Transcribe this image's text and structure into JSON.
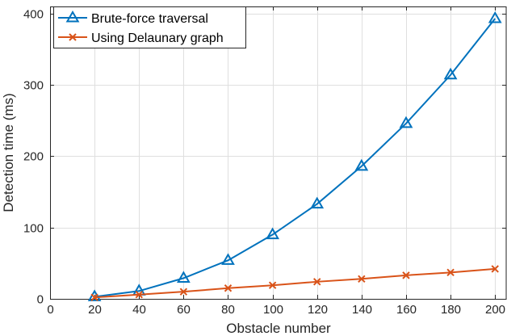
{
  "chart_data": {
    "type": "line",
    "xlabel": "Obstacle number",
    "ylabel": "Detection time (ms)",
    "xlim": [
      0,
      205
    ],
    "ylim": [
      0,
      410
    ],
    "xticks": [
      0,
      20,
      40,
      60,
      80,
      100,
      120,
      140,
      160,
      180,
      200
    ],
    "yticks": [
      0,
      100,
      200,
      300,
      400
    ],
    "grid": true,
    "legend_position": "top-left",
    "x": [
      20,
      40,
      60,
      80,
      100,
      120,
      140,
      160,
      180,
      200
    ],
    "series": [
      {
        "name": "Brute-force traversal",
        "color": "#0072bd",
        "marker": "triangle",
        "values": [
          3,
          11,
          29,
          54,
          90,
          133,
          186,
          246,
          314,
          393
        ]
      },
      {
        "name": "Using Delaunary graph",
        "color": "#d95319",
        "marker": "x",
        "values": [
          2,
          6,
          10,
          15,
          19,
          24,
          28,
          33,
          37,
          42
        ]
      }
    ]
  }
}
